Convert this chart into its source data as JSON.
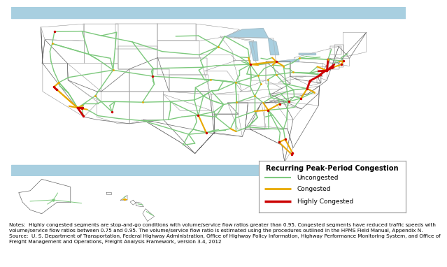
{
  "legend_title": "Recurring Peak-Period Congestion",
  "legend_items": [
    {
      "label": "Uncongested",
      "color": "#7dc97d",
      "lw": 1.0
    },
    {
      "label": "Congested",
      "color": "#e8a800",
      "lw": 1.5
    },
    {
      "label": "Highly Congested",
      "color": "#cc0000",
      "lw": 2.0
    }
  ],
  "ocean_color": "#a8cfe0",
  "land_color": "#ffffff",
  "state_edge_color": "#aaaaaa",
  "country_edge_color": "#666666",
  "notes_line1": "Notes:  Highly congested segments are stop-and-go conditions with volume/service flow ratios greater than 0.95. Congested segments have reduced traffic speeds with",
  "notes_line2": "volume/service flow ratios between 0.75 and 0.95. The volume/service flow ratio is estimated using the procedures outlined in the HPMS Field Manual, Appendix N.",
  "notes_line3": "Source:  U. S. Department of Transportation, Federal Highway Administration, Office of Highway Policy Information, Highway Performance Monitoring System, and Office of",
  "notes_line4": "Freight Management and Operations, Freight Analysis Framework, version 3.4, 2012",
  "notes_fontsize": 5.2,
  "legend_title_fontsize": 7.0,
  "legend_item_fontsize": 6.5,
  "fig_bg_color": "#ffffff"
}
